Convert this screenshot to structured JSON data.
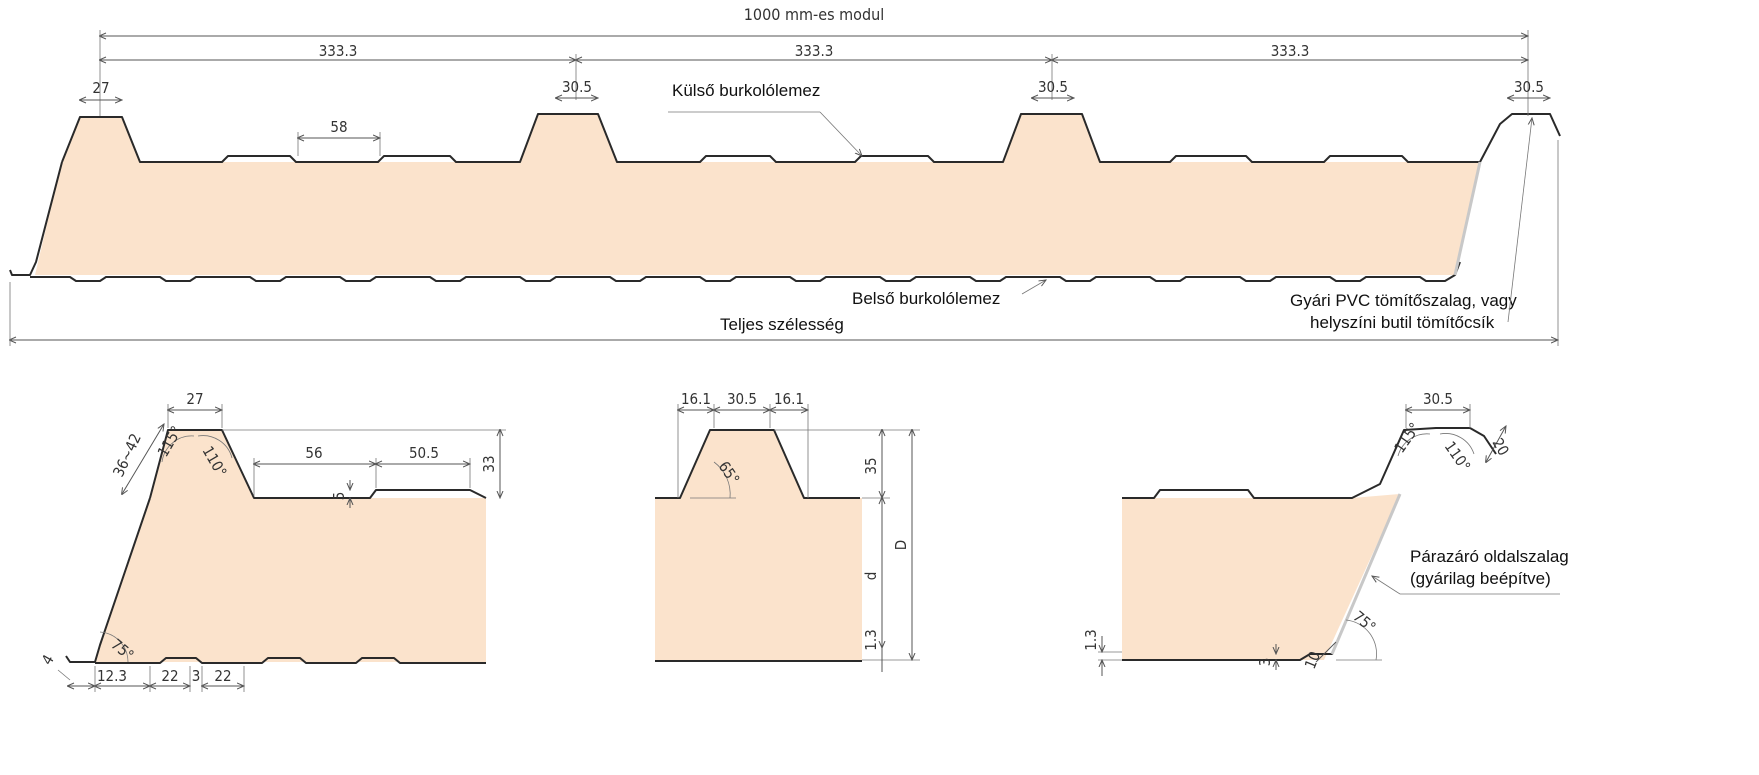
{
  "top": {
    "module_label": "1000 mm-es modul",
    "module_parts": [
      "333.3",
      "333.3",
      "333.3"
    ],
    "crest_widths": [
      "27",
      "30.5",
      "30.5",
      "30.5"
    ],
    "minor_rib_width": "58",
    "outer_sheet_label": "Külső burkolólemez",
    "inner_sheet_label": "Belső burkolólemez",
    "total_width_label": "Teljes szélesség",
    "seal_label_line1": "Gyári PVC tömítőszalag, vagy",
    "seal_label_line2": "helyszíni butil tömítőcsík"
  },
  "detail_left": {
    "crest": "27",
    "slope": "36~42",
    "angle_left": "115°",
    "angle_right": "110°",
    "rib_1": "56",
    "rib_2": "50.5",
    "rib_depth": "5",
    "height": "33",
    "base_angle": "75°",
    "lip": "4",
    "bottom": [
      "12.3",
      "22",
      "3",
      "22"
    ]
  },
  "detail_middle": {
    "top_dims": [
      "16.1",
      "30.5",
      "16.1"
    ],
    "angle": "65°",
    "height_35": "35",
    "d_label": "d",
    "D_label": "D",
    "lower": "1.3"
  },
  "detail_right": {
    "crest": "30.5",
    "angle_left": "115°",
    "angle_right": "110°",
    "side": "20",
    "lower": "1.3",
    "small_3": "3",
    "small_10": "10",
    "base_angle": "75°",
    "vapor_label_line1": "Párazáró oldalszalag",
    "vapor_label_line2": "(gyárilag beépítve)"
  }
}
